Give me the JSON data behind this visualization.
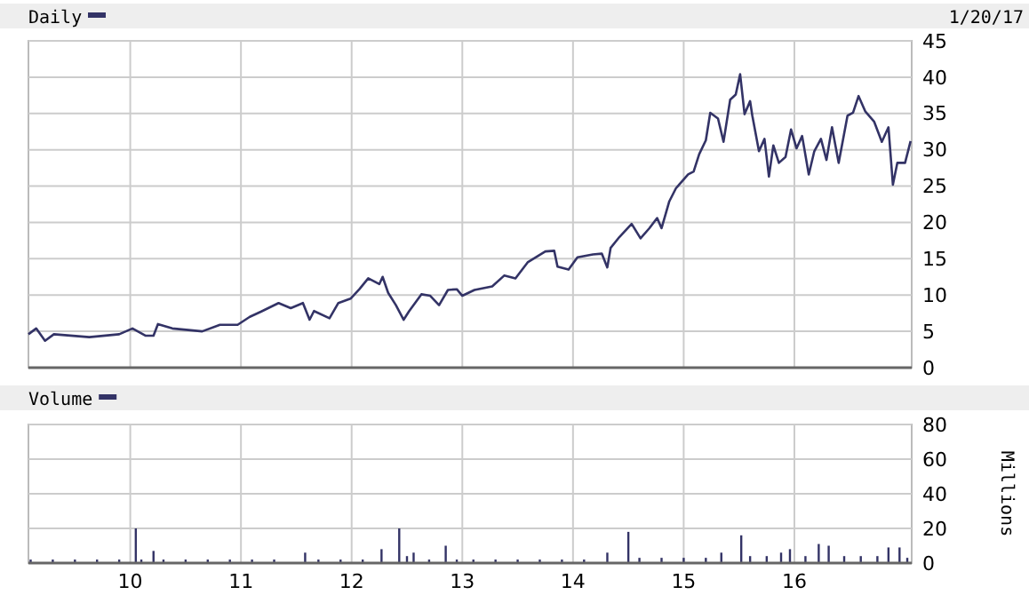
{
  "chart_data": [
    {
      "type": "line",
      "annotations": [
        "1/20/17"
      ],
      "legend": "top left",
      "grid": true,
      "tick_labels": "y",
      "xlim": [
        9.08,
        17.06
      ],
      "xticks": [
        10,
        11,
        12,
        13,
        14,
        15,
        16
      ],
      "ylim": [
        0,
        45
      ],
      "yticks": [
        0,
        5,
        10,
        15,
        20,
        25,
        30,
        35,
        40,
        45
      ],
      "series": [
        {
          "name": "Daily",
          "color": "#333366",
          "x": [
            9.08,
            9.15,
            9.23,
            9.31,
            9.63,
            9.9,
            10.02,
            10.14,
            10.21,
            10.25,
            10.38,
            10.65,
            10.81,
            10.97,
            11.08,
            11.18,
            11.34,
            11.45,
            11.56,
            11.62,
            11.66,
            11.8,
            11.88,
            11.99,
            12.07,
            12.15,
            12.25,
            12.28,
            12.33,
            12.4,
            12.47,
            12.52,
            12.63,
            12.71,
            12.79,
            12.87,
            12.95,
            13.0,
            13.11,
            13.27,
            13.38,
            13.48,
            13.59,
            13.75,
            13.83,
            13.86,
            13.96,
            14.04,
            14.18,
            14.26,
            14.31,
            14.34,
            14.42,
            14.53,
            14.61,
            14.69,
            14.76,
            14.8,
            14.87,
            14.93,
            15.04,
            15.09,
            15.14,
            15.2,
            15.24,
            15.31,
            15.36,
            15.42,
            15.47,
            15.51,
            15.55,
            15.6,
            15.62,
            15.68,
            15.73,
            15.77,
            15.81,
            15.86,
            15.92,
            15.97,
            16.02,
            16.07,
            16.13,
            16.18,
            16.24,
            16.29,
            16.34,
            16.4,
            16.48,
            16.53,
            16.58,
            16.64,
            16.72,
            16.79,
            16.85,
            16.89,
            16.93,
            17.0,
            17.05
          ],
          "values": [
            4.6,
            5.4,
            3.7,
            4.6,
            4.2,
            4.6,
            5.4,
            4.4,
            4.4,
            6.0,
            5.4,
            5.0,
            5.9,
            5.9,
            7.0,
            7.7,
            8.9,
            8.2,
            8.9,
            6.6,
            7.8,
            6.8,
            8.9,
            9.5,
            10.8,
            12.3,
            11.5,
            12.5,
            10.3,
            8.6,
            6.6,
            7.8,
            10.1,
            9.9,
            8.6,
            10.7,
            10.8,
            9.9,
            10.7,
            11.2,
            12.7,
            12.3,
            14.5,
            16.0,
            16.1,
            13.9,
            13.5,
            15.2,
            15.6,
            15.7,
            13.8,
            16.5,
            18.0,
            19.8,
            17.8,
            19.2,
            20.6,
            19.2,
            22.9,
            24.7,
            26.6,
            27.0,
            29.4,
            31.3,
            35.1,
            34.3,
            31.1,
            36.9,
            37.6,
            40.4,
            34.9,
            36.7,
            34.7,
            29.8,
            31.5,
            26.3,
            30.6,
            28.2,
            29.0,
            32.8,
            30.2,
            31.9,
            26.6,
            29.8,
            31.5,
            28.6,
            33.1,
            28.2,
            34.7,
            35.1,
            37.4,
            35.3,
            33.9,
            31.1,
            33.1,
            25.2,
            28.2,
            28.2,
            31.2
          ]
        }
      ]
    },
    {
      "type": "bar",
      "ylabel": "Millions",
      "legend": "top left",
      "grid": true,
      "xlim": [
        9.08,
        17.06
      ],
      "xticks": [
        10,
        11,
        12,
        13,
        14,
        15,
        16
      ],
      "ylim": [
        0,
        80
      ],
      "yticks": [
        0,
        20,
        40,
        60,
        80
      ],
      "series": [
        {
          "name": "Volume",
          "color": "#333366",
          "x": [
            9.1,
            9.3,
            9.5,
            9.7,
            9.9,
            10.05,
            10.1,
            10.21,
            10.3,
            10.5,
            10.7,
            10.9,
            11.1,
            11.3,
            11.58,
            11.7,
            11.9,
            12.1,
            12.27,
            12.43,
            12.5,
            12.56,
            12.7,
            12.85,
            12.95,
            13.1,
            13.3,
            13.5,
            13.7,
            13.9,
            14.1,
            14.31,
            14.5,
            14.6,
            14.8,
            15.0,
            15.2,
            15.34,
            15.52,
            15.6,
            15.75,
            15.88,
            15.96,
            16.1,
            16.22,
            16.31,
            16.45,
            16.6,
            16.75,
            16.85,
            16.95,
            17.02
          ],
          "values": [
            2,
            2,
            2,
            2,
            2,
            20,
            2,
            7,
            2,
            2,
            2,
            2,
            2,
            2,
            6,
            2,
            2,
            2,
            8,
            20,
            4,
            6,
            2,
            10,
            2,
            2,
            2,
            2,
            2,
            2,
            2,
            6,
            18,
            3,
            3,
            3,
            3,
            6,
            16,
            4,
            4,
            6,
            8,
            4,
            11,
            10,
            4,
            4,
            4,
            9,
            9,
            3
          ]
        }
      ]
    }
  ]
}
